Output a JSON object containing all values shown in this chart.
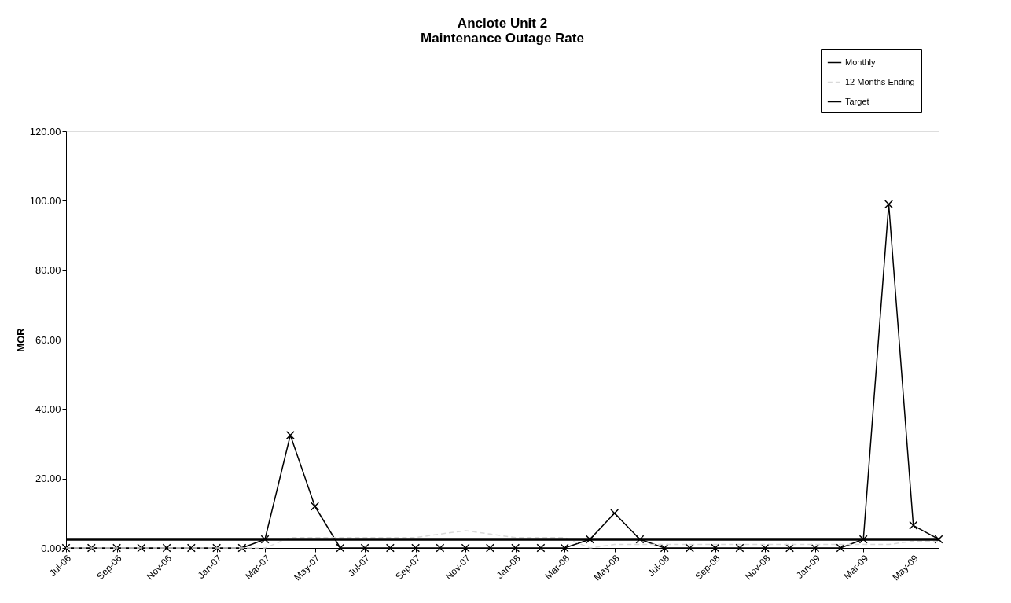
{
  "chart_data": {
    "type": "line",
    "title": "Anclote Unit 2\nMaintenance Outage Rate",
    "ylabel": "MOR",
    "x": [
      "2006-07",
      "2006-08",
      "2006-09",
      "2006-10",
      "2006-11",
      "2006-12",
      "2007-01",
      "2007-02",
      "2007-03",
      "2007-04",
      "2007-05",
      "2007-06",
      "2007-07",
      "2007-08",
      "2007-09",
      "2007-10",
      "2007-11",
      "2007-12",
      "2008-01",
      "2008-02",
      "2008-03",
      "2008-04",
      "2008-05",
      "2008-06",
      "2008-07",
      "2008-08",
      "2008-09",
      "2008-10",
      "2008-11",
      "2008-12",
      "2009-01",
      "2009-02",
      "2009-03",
      "2009-04",
      "2009-05",
      "2009-06"
    ],
    "series": [
      {
        "name": "Monthly",
        "color": "#000000",
        "marker": "cross",
        "line_style": "solid",
        "values": [
          0,
          0,
          0,
          0,
          0,
          0,
          0,
          0,
          2.5,
          32.5,
          12,
          0,
          0,
          0,
          0,
          0,
          0,
          0,
          0,
          0,
          0,
          2.5,
          10,
          2.5,
          0,
          0,
          0,
          0,
          0,
          0,
          0,
          0,
          2.5,
          99,
          6.5,
          2.5
        ]
      },
      {
        "name": "12 Months Ending",
        "color": "#d9d9d9",
        "marker": "none",
        "line_style": "dashed",
        "values": [
          0,
          0,
          0,
          0,
          0,
          0,
          0,
          0,
          0,
          3,
          3,
          3,
          3,
          3,
          3,
          4,
          5,
          4,
          3,
          3,
          3,
          0,
          1,
          1,
          1,
          1,
          1,
          1,
          1,
          1,
          1,
          1,
          1,
          1,
          2,
          2
        ]
      },
      {
        "name": "Target",
        "color": "#000000",
        "marker": "none",
        "line_style": "solid",
        "values": [
          2.5,
          2.5,
          2.5,
          2.5,
          2.5,
          2.5,
          2.5,
          2.5,
          2.5,
          2.5,
          2.5,
          2.5,
          2.5,
          2.5,
          2.5,
          2.5,
          2.5,
          2.5,
          2.5,
          2.5,
          2.5,
          2.5,
          2.5,
          2.5,
          2.5,
          2.5,
          2.5,
          2.5,
          2.5,
          2.5,
          2.5,
          2.5,
          2.5,
          2.5,
          2.5,
          2.5
        ]
      }
    ],
    "xlim": [
      "2006-07",
      "2009-06"
    ],
    "xticks": [
      {
        "value": "2006-07",
        "label": "Jul-06"
      },
      {
        "value": "2006-09",
        "label": "Sep-06"
      },
      {
        "value": "2006-11",
        "label": "Nov-06"
      },
      {
        "value": "2007-01",
        "label": "Jan-07"
      },
      {
        "value": "2007-03",
        "label": "Mar-07"
      },
      {
        "value": "2007-05",
        "label": "May-07"
      },
      {
        "value": "2007-07",
        "label": "Jul-07"
      },
      {
        "value": "2007-09",
        "label": "Sep-07"
      },
      {
        "value": "2007-11",
        "label": "Nov-07"
      },
      {
        "value": "2008-01",
        "label": "Jan-08"
      },
      {
        "value": "2008-03",
        "label": "Mar-08"
      },
      {
        "value": "2008-05",
        "label": "May-08"
      },
      {
        "value": "2008-07",
        "label": "Jul-08"
      },
      {
        "value": "2008-09",
        "label": "Sep-08"
      },
      {
        "value": "2008-11",
        "label": "Nov-08"
      },
      {
        "value": "2009-01",
        "label": "Jan-09"
      },
      {
        "value": "2009-03",
        "label": "Mar-09"
      },
      {
        "value": "2009-05",
        "label": "May-09"
      }
    ],
    "ylim": [
      0,
      120
    ],
    "yticks": [
      {
        "value": 0,
        "label": "0.00"
      },
      {
        "value": 20,
        "label": "20.00"
      },
      {
        "value": 40,
        "label": "40.00"
      },
      {
        "value": 60,
        "label": "60.00"
      },
      {
        "value": 80,
        "label": "80.00"
      },
      {
        "value": 100,
        "label": "100.00"
      },
      {
        "value": 120,
        "label": "120.00"
      }
    ],
    "grid": false,
    "legend": "top right"
  }
}
